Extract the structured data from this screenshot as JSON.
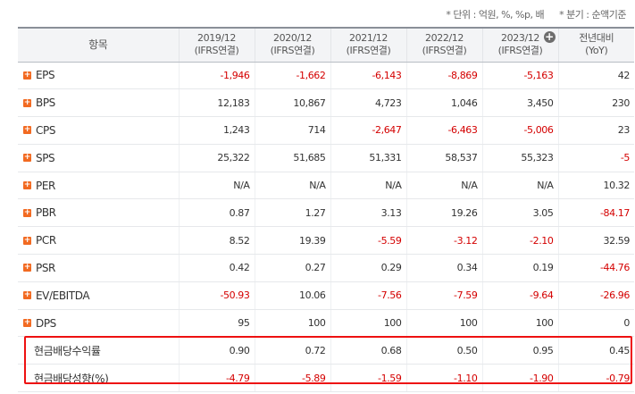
{
  "notes": {
    "unit": "* 단위 : 억원, %, %p, 배",
    "period": "* 분기 : 순액기준"
  },
  "header": {
    "item": "항목",
    "columns": [
      {
        "period": "2019/12",
        "basis": "(IFRS연결)"
      },
      {
        "period": "2020/12",
        "basis": "(IFRS연결)"
      },
      {
        "period": "2021/12",
        "basis": "(IFRS연결)"
      },
      {
        "period": "2022/12",
        "basis": "(IFRS연결)"
      },
      {
        "period": "2023/12",
        "basis": "(IFRS연결)"
      }
    ],
    "yoy": {
      "label": "전년대비",
      "sub": "(YoY)"
    },
    "expand_symbol": "+"
  },
  "rows": [
    {
      "label": "EPS",
      "values": [
        "-1,946",
        "-1,662",
        "-6,143",
        "-8,869",
        "-5,163"
      ],
      "yoy": "42"
    },
    {
      "label": "BPS",
      "values": [
        "12,183",
        "10,867",
        "4,723",
        "1,046",
        "3,450"
      ],
      "yoy": "230"
    },
    {
      "label": "CPS",
      "values": [
        "1,243",
        "714",
        "-2,647",
        "-6,463",
        "-5,006"
      ],
      "yoy": "23"
    },
    {
      "label": "SPS",
      "values": [
        "25,322",
        "51,685",
        "51,331",
        "58,537",
        "55,323"
      ],
      "yoy": "-5"
    },
    {
      "label": "PER",
      "values": [
        "N/A",
        "N/A",
        "N/A",
        "N/A",
        "N/A"
      ],
      "yoy": "10.32"
    },
    {
      "label": "PBR",
      "values": [
        "0.87",
        "1.27",
        "3.13",
        "19.26",
        "3.05"
      ],
      "yoy": "-84.17"
    },
    {
      "label": "PCR",
      "values": [
        "8.52",
        "19.39",
        "-5.59",
        "-3.12",
        "-2.10"
      ],
      "yoy": "32.59"
    },
    {
      "label": "PSR",
      "values": [
        "0.42",
        "0.27",
        "0.29",
        "0.34",
        "0.19"
      ],
      "yoy": "-44.76"
    },
    {
      "label": "EV/EBITDA",
      "values": [
        "-50.93",
        "10.06",
        "-7.56",
        "-7.59",
        "-9.64"
      ],
      "yoy": "-26.96"
    },
    {
      "label": "DPS",
      "values": [
        "95",
        "100",
        "100",
        "100",
        "100"
      ],
      "yoy": "0"
    }
  ],
  "dividend_rows": [
    {
      "label": "현금배당수익률",
      "values": [
        "0.90",
        "0.72",
        "0.68",
        "0.50",
        "0.95"
      ],
      "yoy": "0.45"
    },
    {
      "label": "현금배당성향(%)",
      "values": [
        "-4.79",
        "-5.89",
        "-1.59",
        "-1.10",
        "-1.90"
      ],
      "yoy": "-0.79"
    }
  ],
  "colors": {
    "negative": "#d40000",
    "expand": "#f26a21",
    "highlight": "#ee1111"
  }
}
